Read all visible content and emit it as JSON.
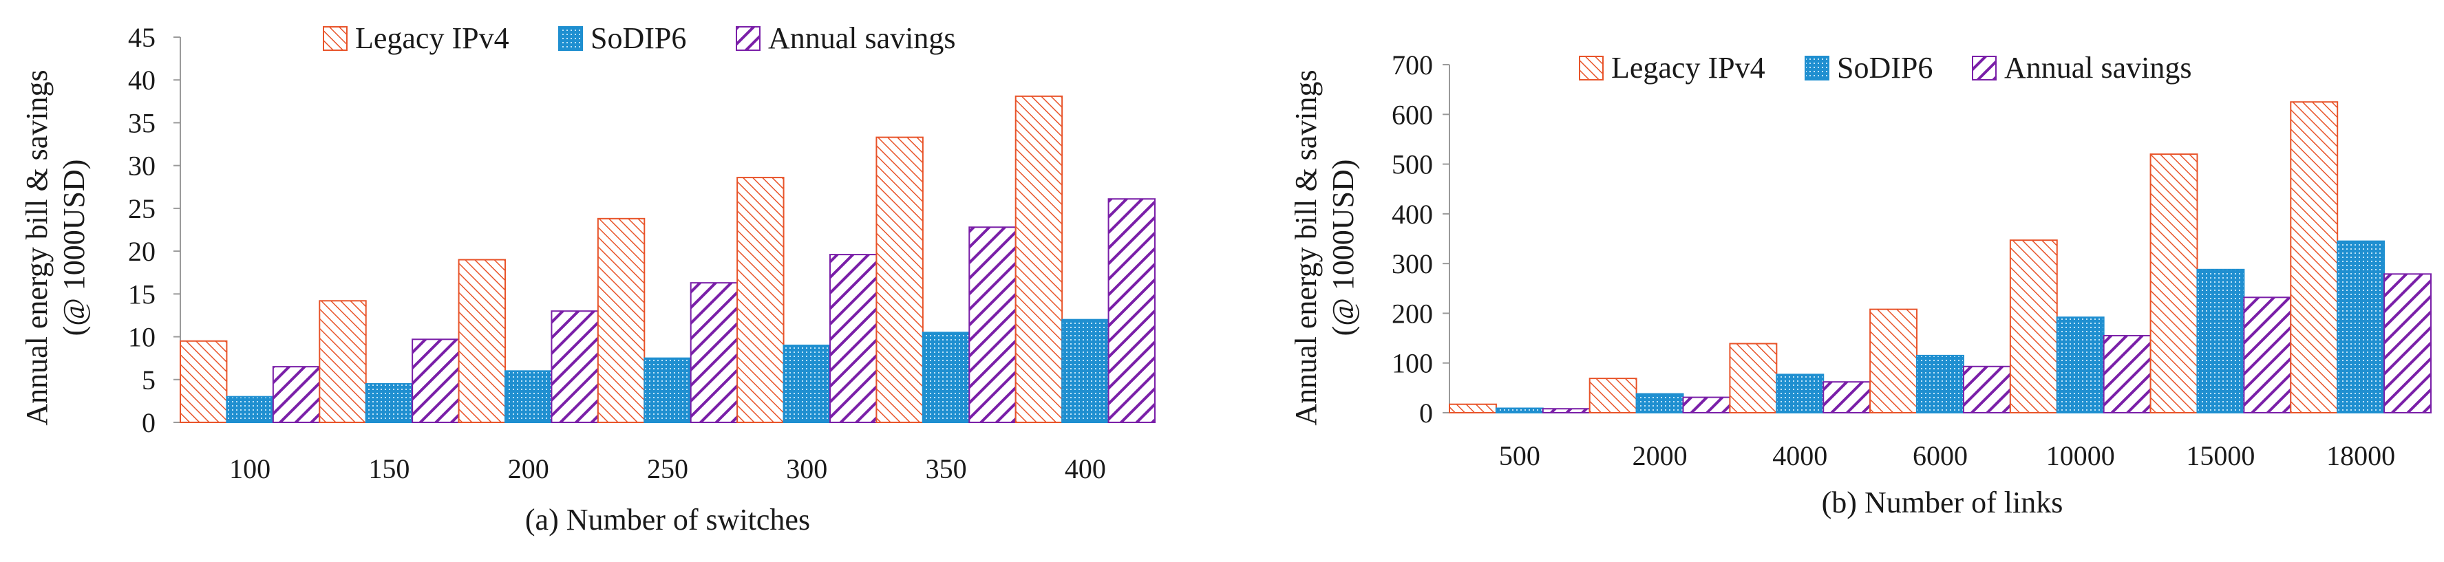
{
  "colors": {
    "legacy": "#e8542a",
    "sodip6": "#1f8fd0",
    "savings": "#7a1fa8",
    "axis": "#9a9a9a",
    "text": "#1a1a1a"
  },
  "chart_data": [
    {
      "type": "bar",
      "caption": "(a) Number of switches",
      "ylabel_line1": "Annual energy bill & savings",
      "ylabel_line2": "(@ 1000USD)",
      "ylim": [
        0,
        45
      ],
      "yticks": [
        "0",
        "5",
        "10",
        "15",
        "20",
        "25",
        "30",
        "35",
        "40",
        "45"
      ],
      "grid": false,
      "legend_position": "top-center",
      "categories": [
        "100",
        "150",
        "200",
        "250",
        "300",
        "350",
        "400"
      ],
      "series": [
        {
          "name": "Legacy IPv4",
          "pattern": "legacy",
          "values": [
            9.5,
            14.2,
            19.0,
            23.8,
            28.6,
            33.3,
            38.1
          ]
        },
        {
          "name": "SoDIP6",
          "pattern": "sodip6",
          "values": [
            3.0,
            4.5,
            6.0,
            7.5,
            9.0,
            10.5,
            12.0
          ]
        },
        {
          "name": "Annual savings",
          "pattern": "savings",
          "values": [
            6.5,
            9.7,
            13.0,
            16.3,
            19.6,
            22.8,
            26.1
          ]
        }
      ]
    },
    {
      "type": "bar",
      "caption": "(b) Number of links",
      "ylabel_line1": "Annual energy bill & savings",
      "ylabel_line2": "(@ 1000USD)",
      "ylim": [
        0,
        700
      ],
      "yticks": [
        "0",
        "100",
        "200",
        "300",
        "400",
        "500",
        "600",
        "700"
      ],
      "grid": false,
      "legend_position": "top-center",
      "categories": [
        "500",
        "2000",
        "4000",
        "6000",
        "10000",
        "15000",
        "18000"
      ],
      "series": [
        {
          "name": "Legacy IPv4",
          "pattern": "legacy",
          "values": [
            17,
            69,
            139,
            208,
            347,
            520,
            625
          ]
        },
        {
          "name": "SoDIP6",
          "pattern": "sodip6",
          "values": [
            9,
            38,
            77,
            115,
            192,
            288,
            345
          ]
        },
        {
          "name": "Annual savings",
          "pattern": "savings",
          "values": [
            8,
            31,
            62,
            93,
            155,
            232,
            279
          ]
        }
      ]
    }
  ]
}
